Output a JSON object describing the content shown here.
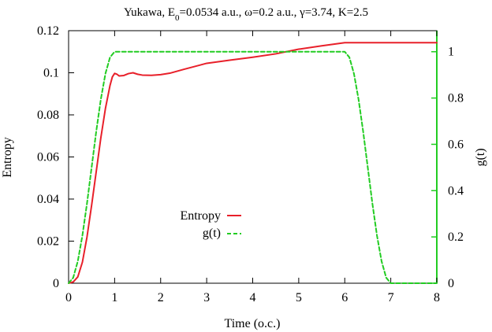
{
  "chart_data": {
    "type": "line",
    "title_parts": {
      "prefix": "Yukawa, E",
      "sub": "0",
      "suffix": "=0.0534 a.u., ω=0.2 a.u., γ=3.74, K=2.5"
    },
    "xlabel": "Time (o.c.)",
    "ylabel": "Entropy",
    "y2label": "g(t)",
    "xlim": [
      0,
      8
    ],
    "ylim": [
      0,
      0.12
    ],
    "y2lim": [
      0,
      1.0909
    ],
    "x_ticks": [
      "0",
      "1",
      "2",
      "3",
      "4",
      "5",
      "6",
      "7",
      "8"
    ],
    "y_ticks": [
      "0",
      "0.02",
      "0.04",
      "0.06",
      "0.08",
      "0.1",
      "0.12"
    ],
    "y2_ticks": [
      "0",
      "0.2",
      "0.4",
      "0.6",
      "0.8",
      "1"
    ],
    "grid": false,
    "legend_position": "center",
    "series": [
      {
        "name": "Entropy",
        "axis": "left",
        "color": "#e8202a",
        "dash": "solid",
        "x": [
          0,
          0.1,
          0.2,
          0.3,
          0.4,
          0.5,
          0.6,
          0.7,
          0.8,
          0.9,
          0.95,
          1.0,
          1.05,
          1.1,
          1.2,
          1.3,
          1.4,
          1.5,
          1.6,
          1.8,
          2.0,
          2.2,
          2.5,
          3.0,
          3.5,
          4.0,
          4.5,
          5.0,
          5.5,
          6.0,
          6.5,
          7.0,
          7.5,
          8.0
        ],
        "y": [
          0.0,
          0.0006,
          0.003,
          0.01,
          0.022,
          0.037,
          0.053,
          0.069,
          0.083,
          0.094,
          0.098,
          0.0997,
          0.0993,
          0.0985,
          0.0987,
          0.0996,
          0.1,
          0.0993,
          0.0989,
          0.0988,
          0.0991,
          0.0998,
          0.1016,
          0.1045,
          0.106,
          0.1074,
          0.109,
          0.1112,
          0.1128,
          0.1143,
          0.1143,
          0.1143,
          0.1143,
          0.1143
        ]
      },
      {
        "name": "g(t)",
        "axis": "right",
        "color": "#22cc22",
        "dash": "dashed",
        "x": [
          0,
          0.1,
          0.2,
          0.3,
          0.4,
          0.5,
          0.6,
          0.7,
          0.8,
          0.9,
          1.0,
          2.0,
          3.0,
          4.0,
          5.0,
          6.0,
          6.1,
          6.2,
          6.3,
          6.4,
          6.5,
          6.6,
          6.7,
          6.8,
          6.9,
          7.0,
          7.5,
          8.0
        ],
        "y": [
          0,
          0.024,
          0.095,
          0.206,
          0.345,
          0.5,
          0.655,
          0.794,
          0.905,
          0.976,
          1,
          1,
          1,
          1,
          1,
          1,
          0.976,
          0.905,
          0.794,
          0.655,
          0.5,
          0.345,
          0.206,
          0.095,
          0.024,
          0,
          0,
          0
        ]
      }
    ]
  }
}
